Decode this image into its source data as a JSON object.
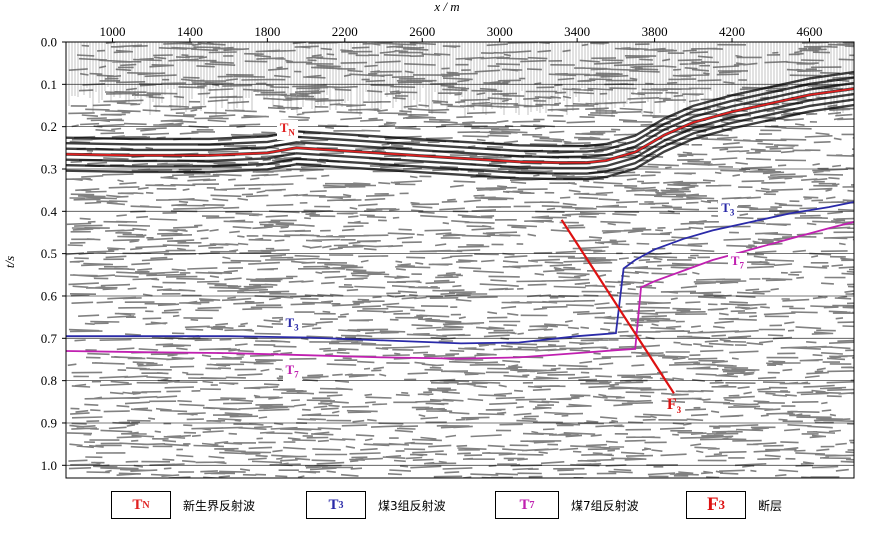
{
  "chart_data": {
    "type": "line",
    "title": "",
    "xlabel": "x / m",
    "ylabel": "t/s",
    "xlim": [
      760,
      4830
    ],
    "ylim": [
      1.03,
      0.0
    ],
    "x_ticks": [
      "1000",
      "1400",
      "1800",
      "2200",
      "2600",
      "3000",
      "3400",
      "3800",
      "4200",
      "4600"
    ],
    "y_ticks": [
      "0.0",
      "0.1",
      "0.2",
      "0.3",
      "0.4",
      "0.5",
      "0.6",
      "0.7",
      "0.8",
      "0.9",
      "1.0"
    ],
    "grid": "horizontal",
    "series": [
      {
        "name": "TN",
        "color": "#e02020",
        "x": [
          760,
          1100,
          1500,
          1800,
          1950,
          2300,
          2700,
          3100,
          3300,
          3450,
          3550,
          3700,
          3850,
          4000,
          4200,
          4400,
          4600,
          4830
        ],
        "y": [
          0.265,
          0.268,
          0.268,
          0.262,
          0.25,
          0.26,
          0.272,
          0.283,
          0.285,
          0.285,
          0.28,
          0.26,
          0.22,
          0.19,
          0.165,
          0.145,
          0.125,
          0.11
        ]
      },
      {
        "name": "T3",
        "color": "#2a2aa8",
        "x": [
          760,
          1200,
          1600,
          2000,
          2400,
          2800,
          3100,
          3400,
          3600,
          3640,
          3700,
          3800,
          3950,
          4100,
          4300,
          4500,
          4700,
          4830
        ],
        "y": [
          0.695,
          0.695,
          0.695,
          0.698,
          0.705,
          0.712,
          0.71,
          0.695,
          0.688,
          0.535,
          0.515,
          0.49,
          0.465,
          0.445,
          0.425,
          0.405,
          0.39,
          0.378
        ]
      },
      {
        "name": "T7",
        "color": "#c020b0",
        "x": [
          760,
          1200,
          1600,
          2000,
          2400,
          2800,
          3100,
          3400,
          3600,
          3700,
          3730,
          3800,
          3950,
          4100,
          4300,
          4500,
          4700,
          4830
        ],
        "y": [
          0.73,
          0.733,
          0.735,
          0.74,
          0.745,
          0.748,
          0.745,
          0.735,
          0.728,
          0.725,
          0.58,
          0.565,
          0.54,
          0.515,
          0.49,
          0.465,
          0.44,
          0.425
        ]
      },
      {
        "name": "F3",
        "color": "#dd1111",
        "x": [
          3320,
          3900
        ],
        "y": [
          0.42,
          0.83
        ]
      }
    ],
    "annotations": [
      {
        "label": "T",
        "sub": "N",
        "x": 1900,
        "y": 0.205,
        "color": "#e02020"
      },
      {
        "label": "T",
        "sub": "3",
        "x": 4180,
        "y": 0.395,
        "color": "#2a2aa8"
      },
      {
        "label": "T",
        "sub": "7",
        "x": 4230,
        "y": 0.52,
        "color": "#c020b0"
      },
      {
        "label": "T",
        "sub": "3",
        "x": 1930,
        "y": 0.665,
        "color": "#2a2aa8"
      },
      {
        "label": "T",
        "sub": "7",
        "x": 1930,
        "y": 0.778,
        "color": "#c020b0"
      },
      {
        "label": "F",
        "sub": "3",
        "x": 3900,
        "y": 0.86,
        "color": "#dd1111"
      }
    ]
  },
  "legend": [
    {
      "symbol": "T",
      "sub": "N",
      "color": "#e02020",
      "desc": "新生界反射波"
    },
    {
      "symbol": "T",
      "sub": "3",
      "color": "#2a2aa8",
      "desc": "煤3组反射波"
    },
    {
      "symbol": "T",
      "sub": "7",
      "color": "#c020b0",
      "desc": "煤7组反射波"
    },
    {
      "symbol": "F",
      "sub": "3",
      "color": "#dd1111",
      "desc": "断层"
    }
  ]
}
